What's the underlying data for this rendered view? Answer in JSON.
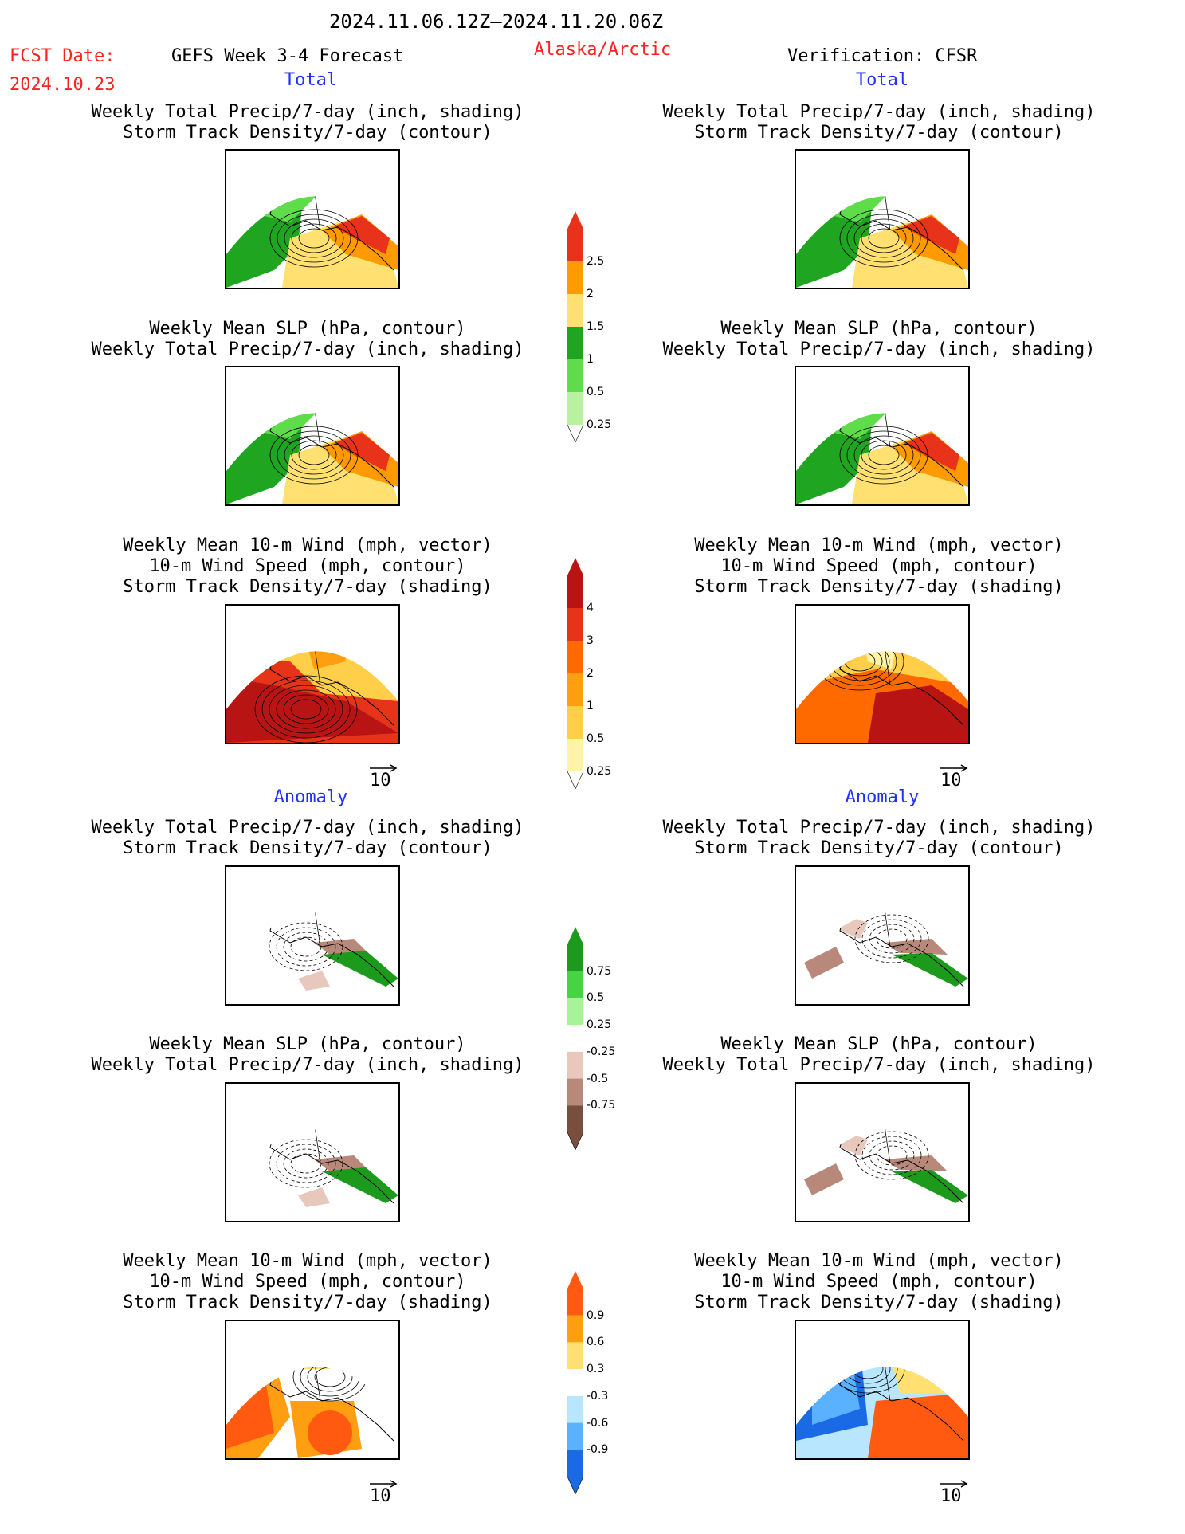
{
  "header": {
    "date_range": "2024.11.06.12Z—2024.11.20.06Z",
    "fcst_label": "FCST Date:",
    "fcst_date": "2024.10.23",
    "forecast_title": "GEFS Week 3-4 Forecast",
    "region": "Alaska/Arctic",
    "verification": "Verification: CFSR"
  },
  "sections": {
    "total": "Total",
    "anomaly": "Anomaly"
  },
  "panels": {
    "precip_storm": {
      "line1": "Weekly Total Precip/7-day (inch, shading)",
      "line2": "Storm Track Density/7-day (contour)"
    },
    "slp_precip": {
      "line1": "Weekly Mean SLP (hPa, contour)",
      "line2": "Weekly Total Precip/7-day (inch, shading)"
    },
    "wind": {
      "line1": "Weekly Mean 10-m Wind (mph, vector)",
      "line2": "10-m Wind Speed (mph, contour)",
      "line3": "Storm Track Density/7-day (shading)"
    }
  },
  "vector_ref": "10",
  "colorbars": [
    {
      "name": "total-precip",
      "labels": [
        "2.5",
        "2",
        "1.5",
        "1",
        "0.5",
        "0.25"
      ],
      "colors": [
        "#e8321a",
        "#ff9a00",
        "#ffe070",
        "#1fa51f",
        "#5fdc4a",
        "#b8f2a0"
      ]
    },
    {
      "name": "total-storm",
      "labels": [
        "4",
        "3",
        "2",
        "1",
        "0.5",
        "0.25"
      ],
      "colors": [
        "#b81414",
        "#e63419",
        "#ff6a00",
        "#ff9e10",
        "#ffcf4a",
        "#fff3a8"
      ]
    },
    {
      "name": "anom-precip",
      "labels": [
        "0.75",
        "0.5",
        "0.25",
        "-0.25",
        "-0.5",
        "-0.75"
      ],
      "colors": [
        "#1c9a1c",
        "#47d443",
        "#a8f29a",
        "#ffffff",
        "#e8c8bc",
        "#b8897a",
        "#7a4e3e"
      ]
    },
    {
      "name": "anom-storm",
      "labels": [
        "0.9",
        "0.6",
        "0.3",
        "-0.3",
        "-0.6",
        "-0.9"
      ],
      "colors": [
        "#ff5a10",
        "#ff9e10",
        "#ffe070",
        "#ffffff",
        "#b8e6ff",
        "#5ab2ff",
        "#1a6ae6"
      ]
    }
  ]
}
